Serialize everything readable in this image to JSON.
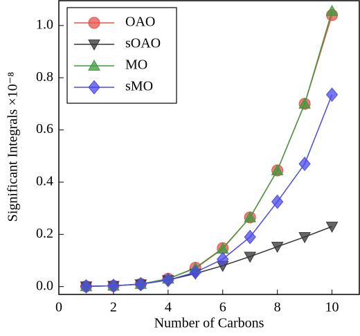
{
  "chart_data": {
    "type": "line",
    "xlabel": "Number of Carbons",
    "ylabel": "Significant Integrals ×10⁻⁸",
    "x": [
      1,
      2,
      3,
      4,
      5,
      6,
      7,
      8,
      9,
      10
    ],
    "series": [
      {
        "name": "OAO",
        "color": "#e8504a",
        "marker": "circle",
        "values": [
          0.001,
          0.003,
          0.01,
          0.03,
          0.072,
          0.147,
          0.265,
          0.445,
          0.7,
          1.04
        ]
      },
      {
        "name": "sOAO",
        "color": "#333333",
        "marker": "triangle-down",
        "values": [
          0.001,
          0.003,
          0.009,
          0.025,
          0.05,
          0.08,
          0.115,
          0.153,
          0.19,
          0.23
        ]
      },
      {
        "name": "MO",
        "color": "#3c9a3c",
        "marker": "triangle-up",
        "values": [
          0.001,
          0.003,
          0.01,
          0.03,
          0.07,
          0.145,
          0.265,
          0.445,
          0.7,
          1.055
        ]
      },
      {
        "name": "sMO",
        "color": "#4a4ae8",
        "marker": "diamond",
        "values": [
          0.001,
          0.003,
          0.009,
          0.025,
          0.055,
          0.105,
          0.19,
          0.325,
          0.47,
          0.735
        ]
      }
    ],
    "xlim": [
      0,
      11
    ],
    "xticks": [
      0,
      2,
      4,
      6,
      8,
      10
    ],
    "ylim": [
      -0.03,
      1.095
    ],
    "yticks": [
      {
        "value": 0,
        "label": "0.0"
      },
      0.2,
      0.4,
      0.6,
      0.8,
      {
        "value": 1,
        "label": "1.0"
      }
    ],
    "legend": "upper left",
    "grid": false
  }
}
